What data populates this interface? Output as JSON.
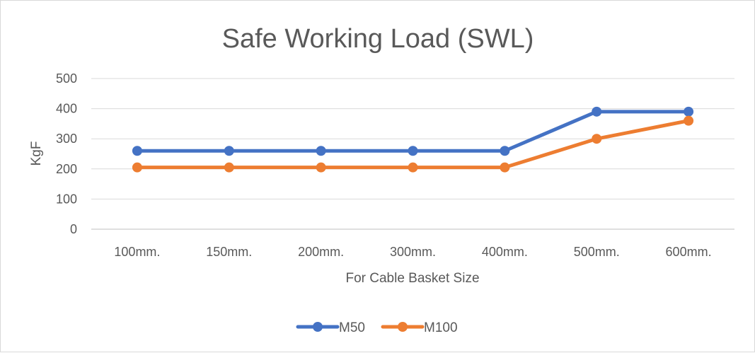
{
  "chart_data": {
    "type": "line",
    "title": "Safe Working Load (SWL)",
    "xlabel": "For Cable Basket Size",
    "ylabel": "KgF",
    "categories": [
      "100mm.",
      "150mm.",
      "200mm.",
      "300mm.",
      "400mm.",
      "500mm.",
      "600mm."
    ],
    "yticks": [
      "0",
      "100",
      "200",
      "300",
      "400",
      "500"
    ],
    "ylim": [
      0,
      500
    ],
    "grid": true,
    "legend_position": "bottom",
    "series": [
      {
        "name": "M50",
        "color": "#4472C4",
        "values": [
          260,
          260,
          260,
          260,
          260,
          390,
          390
        ]
      },
      {
        "name": "M100",
        "color": "#ED7D31",
        "values": [
          205,
          205,
          205,
          205,
          205,
          300,
          360
        ]
      }
    ]
  }
}
